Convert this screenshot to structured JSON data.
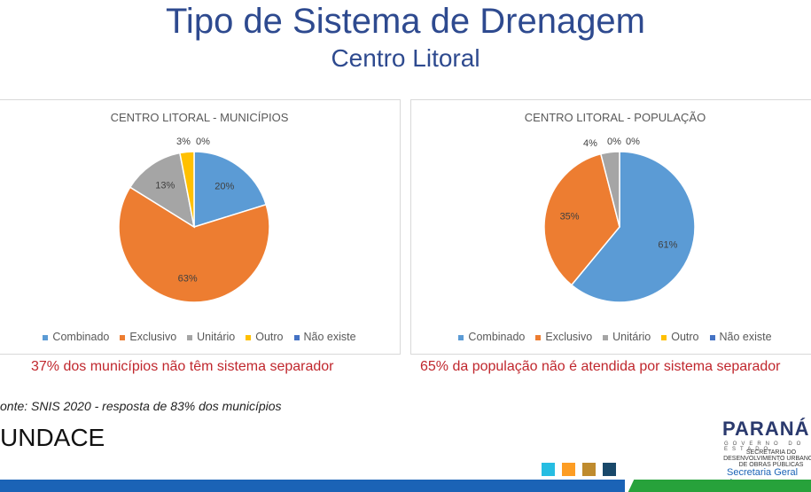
{
  "header": {
    "title": "Tipo de Sistema de Drenagem",
    "subtitle": "Centro Litoral"
  },
  "legend_labels": [
    "Combinado",
    "Exclusivo",
    "Unitário",
    "Outro",
    "Não existe"
  ],
  "colors": [
    "#5b9bd5",
    "#ed7d31",
    "#a5a5a5",
    "#ffc000",
    "#4472c4"
  ],
  "chart_data": [
    {
      "type": "pie",
      "title": "CENTRO LITORAL - MUNICÍPIOS",
      "categories": [
        "Combinado",
        "Exclusivo",
        "Unitário",
        "Outro",
        "Não existe"
      ],
      "values": [
        20,
        63,
        13,
        3,
        0
      ],
      "labels": [
        "20%",
        "63%",
        "13%",
        "3%",
        "0%"
      ]
    },
    {
      "type": "pie",
      "title": "CENTRO LITORAL - POPULAÇÃO",
      "categories": [
        "Combinado",
        "Exclusivo",
        "Unitário",
        "Outro",
        "Não existe"
      ],
      "values": [
        61,
        35,
        4,
        0,
        0
      ],
      "labels": [
        "61%",
        "35%",
        "4%",
        "0%",
        "0%"
      ]
    }
  ],
  "captions": [
    "37% dos municípios não têm sistema separador",
    "65% da população não é atendida por sistema separador"
  ],
  "footer": {
    "source": "onte: SNIS 2020 - resposta de 83% dos municípios",
    "logo": "UNDACE",
    "gov_logo": "PARANÁ",
    "gov_sub": "GOVERNO DO ESTADO",
    "secretaria": "SECRETARIA DO DESENVOLVIMENTO URBANO E DE OBRAS PÚBLICAS",
    "secretaria_geral": "Secretaria Geral das"
  }
}
